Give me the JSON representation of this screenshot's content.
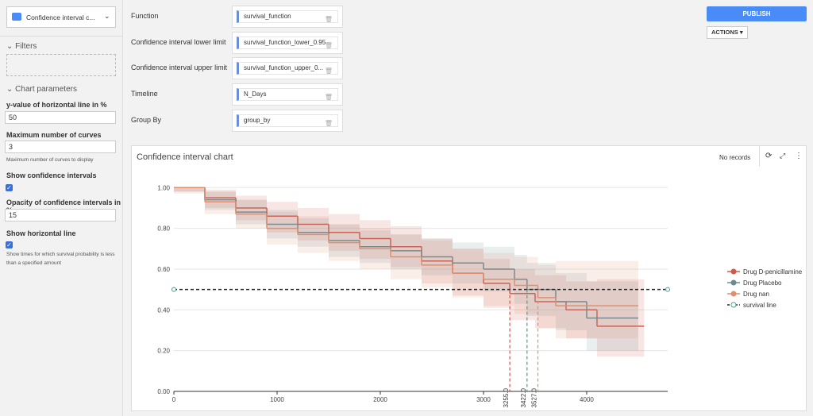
{
  "dataset_button": "Confidence interval c...",
  "sidebar": {
    "filters_title": "Filters",
    "params_title": "Chart parameters",
    "params": [
      {
        "label": "y-value of horizontal line in %",
        "value": "50"
      },
      {
        "label": "Maximum number of curves",
        "value": "3",
        "hint": "Maximum number of curves to display"
      },
      {
        "label": "Show confidence intervals"
      },
      {
        "label": "Opacity of confidence intervals in %",
        "value": "15"
      },
      {
        "label": "Show horizontal line",
        "hint": "Show times for which survival probability is less than a specified amount"
      }
    ]
  },
  "fields": [
    {
      "label": "Function",
      "value": "survival_function"
    },
    {
      "label": "Confidence interval lower limit",
      "value": "survival_function_lower_0.95"
    },
    {
      "label": "Confidence interval upper limit",
      "value": "survival_function_upper_0..."
    },
    {
      "label": "Timeline",
      "value": "N_Days"
    },
    {
      "label": "Group By",
      "value": "group_by"
    }
  ],
  "publish": "PUBLISH",
  "actions": "ACTIONS",
  "card": {
    "title": "Confidence interval chart",
    "status": "No records"
  },
  "chart_data": {
    "type": "step",
    "xlim": [
      0,
      4785
    ],
    "ylim": [
      0,
      1.04
    ],
    "xticks": [
      0,
      1000,
      2000,
      3000,
      4000
    ],
    "yticks": [
      {
        "value": 0,
        "label": "0.00"
      },
      {
        "value": 0.2,
        "label": "0.20"
      },
      {
        "value": 0.4,
        "label": "0.40"
      },
      {
        "value": 0.6,
        "label": "0.60"
      },
      {
        "value": 0.8,
        "label": "0.80"
      },
      {
        "value": 1,
        "label": "1.00"
      }
    ],
    "grid": true,
    "series": [
      {
        "name": "Drug D-penicillamine",
        "color": "#d0594a",
        "x": [
          0,
          300,
          600,
          900,
          1200,
          1500,
          1800,
          2100,
          2400,
          2700,
          3000,
          3255,
          3500,
          3800,
          4100,
          4556
        ],
        "values": [
          1.0,
          0.95,
          0.9,
          0.86,
          0.82,
          0.78,
          0.75,
          0.71,
          0.64,
          0.58,
          0.53,
          0.48,
          0.44,
          0.4,
          0.32,
          0.32
        ],
        "lower": [
          0.98,
          0.9,
          0.84,
          0.78,
          0.74,
          0.69,
          0.65,
          0.61,
          0.53,
          0.47,
          0.41,
          0.35,
          0.31,
          0.26,
          0.17,
          0.17
        ],
        "upper": [
          1.0,
          0.99,
          0.96,
          0.93,
          0.9,
          0.87,
          0.84,
          0.81,
          0.75,
          0.7,
          0.65,
          0.6,
          0.57,
          0.54,
          0.55,
          0.55
        ]
      },
      {
        "name": "Drug Placebo",
        "color": "#6a8a94",
        "x": [
          0,
          300,
          600,
          900,
          1200,
          1500,
          1800,
          2100,
          2400,
          2700,
          3000,
          3300,
          3422,
          3700,
          4000,
          4500
        ],
        "values": [
          1.0,
          0.94,
          0.88,
          0.82,
          0.78,
          0.74,
          0.71,
          0.69,
          0.66,
          0.63,
          0.6,
          0.55,
          0.5,
          0.44,
          0.36,
          0.36
        ],
        "lower": [
          0.98,
          0.89,
          0.82,
          0.75,
          0.71,
          0.66,
          0.63,
          0.6,
          0.57,
          0.53,
          0.49,
          0.43,
          0.37,
          0.3,
          0.2,
          0.2
        ],
        "upper": [
          1.0,
          0.98,
          0.94,
          0.89,
          0.85,
          0.82,
          0.79,
          0.77,
          0.75,
          0.73,
          0.71,
          0.67,
          0.63,
          0.58,
          0.54,
          0.54
        ]
      },
      {
        "name": "Drug nan",
        "color": "#e08f6e",
        "x": [
          0,
          300,
          600,
          900,
          1200,
          1500,
          1800,
          2100,
          2400,
          2700,
          3000,
          3300,
          3527,
          3700,
          4500
        ],
        "values": [
          1.0,
          0.93,
          0.87,
          0.8,
          0.77,
          0.73,
          0.7,
          0.66,
          0.62,
          0.58,
          0.55,
          0.52,
          0.46,
          0.42,
          0.42
        ],
        "lower": [
          0.97,
          0.87,
          0.8,
          0.72,
          0.68,
          0.64,
          0.6,
          0.55,
          0.51,
          0.46,
          0.42,
          0.38,
          0.31,
          0.26,
          0.26
        ],
        "upper": [
          1.0,
          0.98,
          0.94,
          0.88,
          0.86,
          0.82,
          0.8,
          0.77,
          0.74,
          0.7,
          0.68,
          0.66,
          0.62,
          0.64,
          0.64
        ]
      }
    ],
    "hline": {
      "name": "survival line",
      "value": 0.5,
      "color": "#222"
    },
    "vlines": [
      {
        "value": 3255,
        "label": "3255.0",
        "color": "#d0594a"
      },
      {
        "value": 3422,
        "label": "3422.0",
        "color": "#4e9a8c"
      },
      {
        "value": 3527,
        "label": "3527.0",
        "color": "#e08f6e"
      }
    ]
  }
}
